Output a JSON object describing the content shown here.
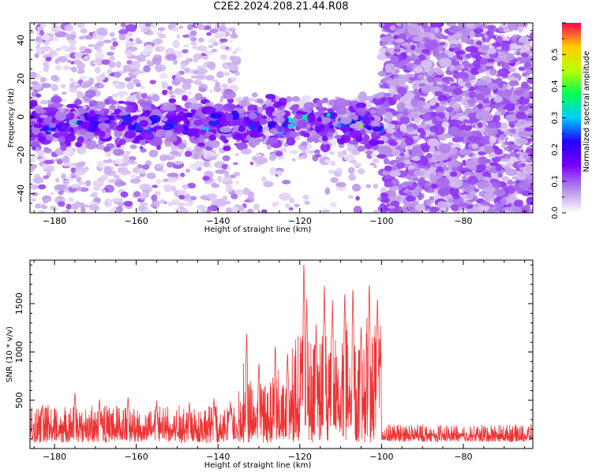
{
  "title": "C2E2.2024.208.21.44.R08",
  "colors": {
    "line": "#ee3333",
    "axis": "#000000"
  },
  "chart_data": [
    {
      "type": "heatmap",
      "title": "C2E2.2024.208.21.44.R08",
      "xlabel": "Height of straight line (km)",
      "ylabel": "Frequency (Hz)",
      "xlim": [
        -186,
        -63
      ],
      "ylim": [
        -50,
        49
      ],
      "x_ticks": [
        -180,
        -160,
        -140,
        -120,
        -100,
        -80
      ],
      "y_ticks": [
        -40,
        -20,
        0,
        20,
        40
      ],
      "colorbar": {
        "label": "Normalized spectral amplitude",
        "range": [
          0.0,
          0.6
        ],
        "ticks": [
          0.0,
          0.1,
          0.2,
          0.3,
          0.4,
          0.5
        ],
        "colormap": [
          "#ffffff",
          "#b58ce6",
          "#7a00ff",
          "#2200ff",
          "#00ccff",
          "#00ff55",
          "#bbff00",
          "#ffcc00",
          "#ff0055"
        ]
      },
      "features": [
        {
          "region": "band",
          "x_range": [
            -186,
            -100
          ],
          "frequency_center": -3,
          "frequency_halfwidth": 9,
          "amplitude": 0.2
        },
        {
          "region": "scatter",
          "x_range": [
            -186,
            -100
          ],
          "frequency_range": [
            -50,
            49
          ],
          "amplitude": 0.08
        },
        {
          "region": "gap",
          "x_range": [
            -135,
            -100
          ],
          "frequency_range": [
            10,
            49
          ],
          "amplitude": 0.0
        },
        {
          "region": "dense",
          "x_range": [
            -100,
            -63
          ],
          "frequency_range": [
            -50,
            49
          ],
          "amplitude": 0.1
        }
      ]
    },
    {
      "type": "line",
      "xlabel": "Height of straight line (km)",
      "ylabel": "SNR (10 * v/v)",
      "xlim": [
        -186,
        -63
      ],
      "ylim": [
        0,
        1950
      ],
      "x_ticks": [
        -180,
        -160,
        -140,
        -120,
        -100,
        -80
      ],
      "y_ticks": [
        500,
        1000,
        1500
      ],
      "series": [
        {
          "noise_floor": 200,
          "segments": [
            {
              "x_range": [
                -186,
                -135
              ],
              "typical_peak": 450
            },
            {
              "x_range": [
                -135,
                -122
              ],
              "typical_peak": 700
            },
            {
              "x_range": [
                -122,
                -100
              ],
              "typical_peak": 1200
            },
            {
              "x_range": [
                -100,
                -63
              ],
              "typical_peak": 250
            }
          ],
          "peaks": [
            {
              "x": -183,
              "y": 460
            },
            {
              "x": -175,
              "y": 590
            },
            {
              "x": -169,
              "y": 520
            },
            {
              "x": -162,
              "y": 540
            },
            {
              "x": -155,
              "y": 500
            },
            {
              "x": -147,
              "y": 480
            },
            {
              "x": -141,
              "y": 520
            },
            {
              "x": -137,
              "y": 490
            },
            {
              "x": -133,
              "y": 1200
            },
            {
              "x": -130,
              "y": 900
            },
            {
              "x": -126,
              "y": 1080
            },
            {
              "x": -123,
              "y": 1000
            },
            {
              "x": -119,
              "y": 1950
            },
            {
              "x": -118.3,
              "y": 1550
            },
            {
              "x": -116,
              "y": 1300
            },
            {
              "x": -114,
              "y": 1700
            },
            {
              "x": -112,
              "y": 1550
            },
            {
              "x": -109,
              "y": 1650
            },
            {
              "x": -107,
              "y": 1700
            },
            {
              "x": -105,
              "y": 1300
            },
            {
              "x": -103,
              "y": 1750
            },
            {
              "x": -101,
              "y": 1600
            }
          ]
        }
      ]
    }
  ]
}
